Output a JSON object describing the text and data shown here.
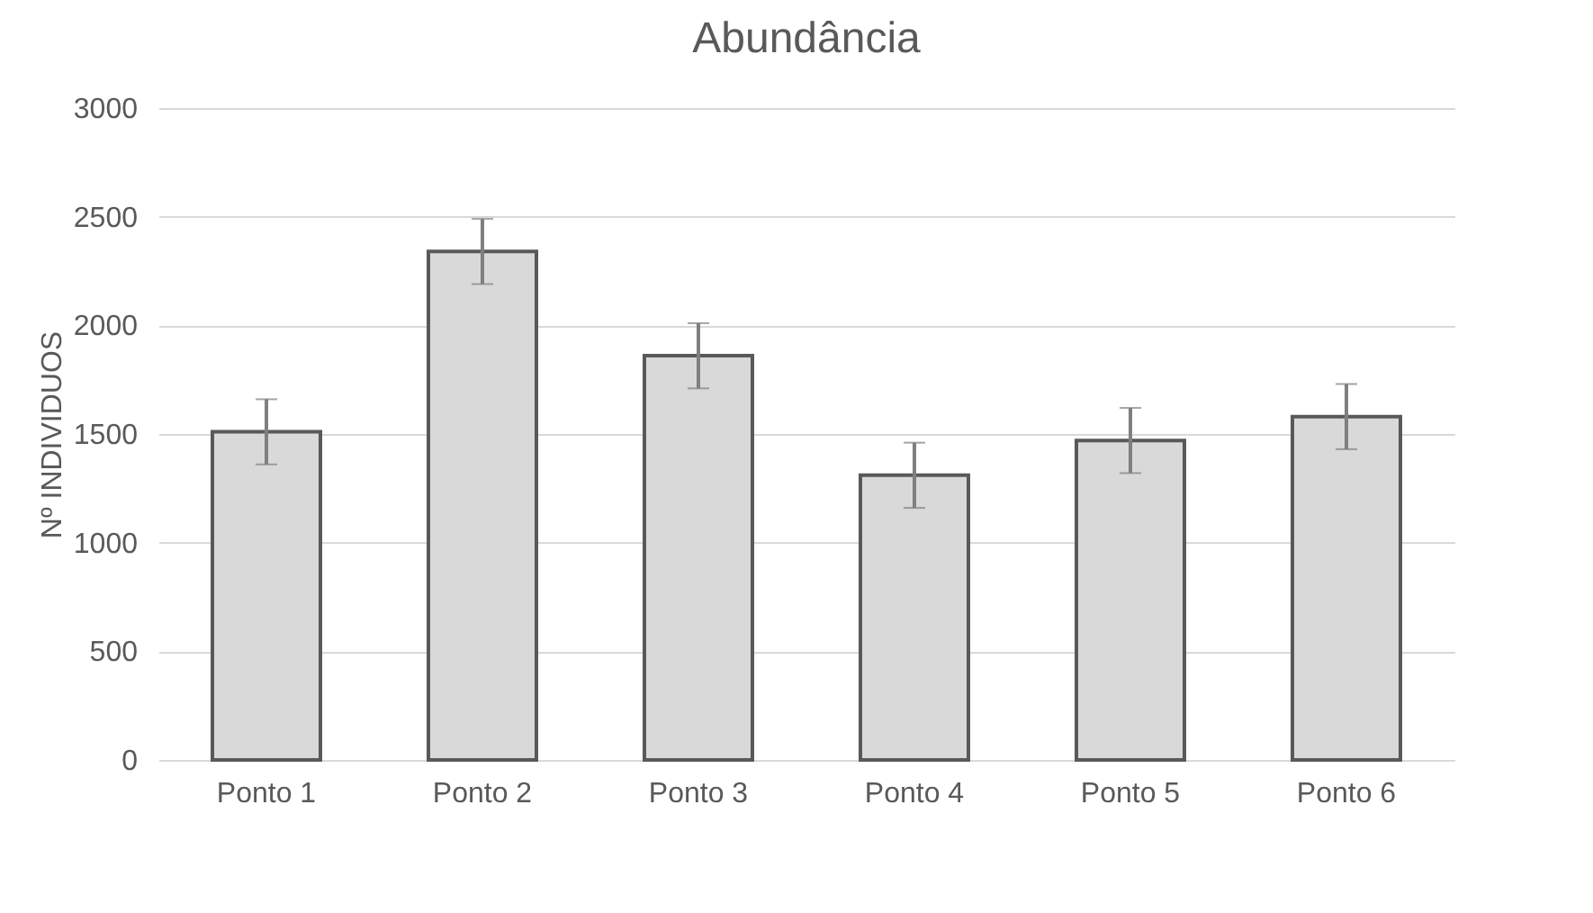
{
  "chart_data": {
    "type": "bar",
    "title": "Abundância",
    "ylabel": "Nº INDIVIDUOS",
    "categories": [
      "Ponto 1",
      "Ponto 2",
      "Ponto 3",
      "Ponto 4",
      "Ponto 5",
      "Ponto 6"
    ],
    "values": [
      1510,
      2340,
      1860,
      1310,
      1470,
      1580
    ],
    "errors": [
      150,
      150,
      150,
      150,
      150,
      150
    ],
    "color": "#d9d9d9",
    "ylim": [
      0,
      3000
    ],
    "yticks": [
      0,
      500,
      1000,
      1500,
      2000,
      2500,
      3000
    ],
    "grid": "y"
  }
}
